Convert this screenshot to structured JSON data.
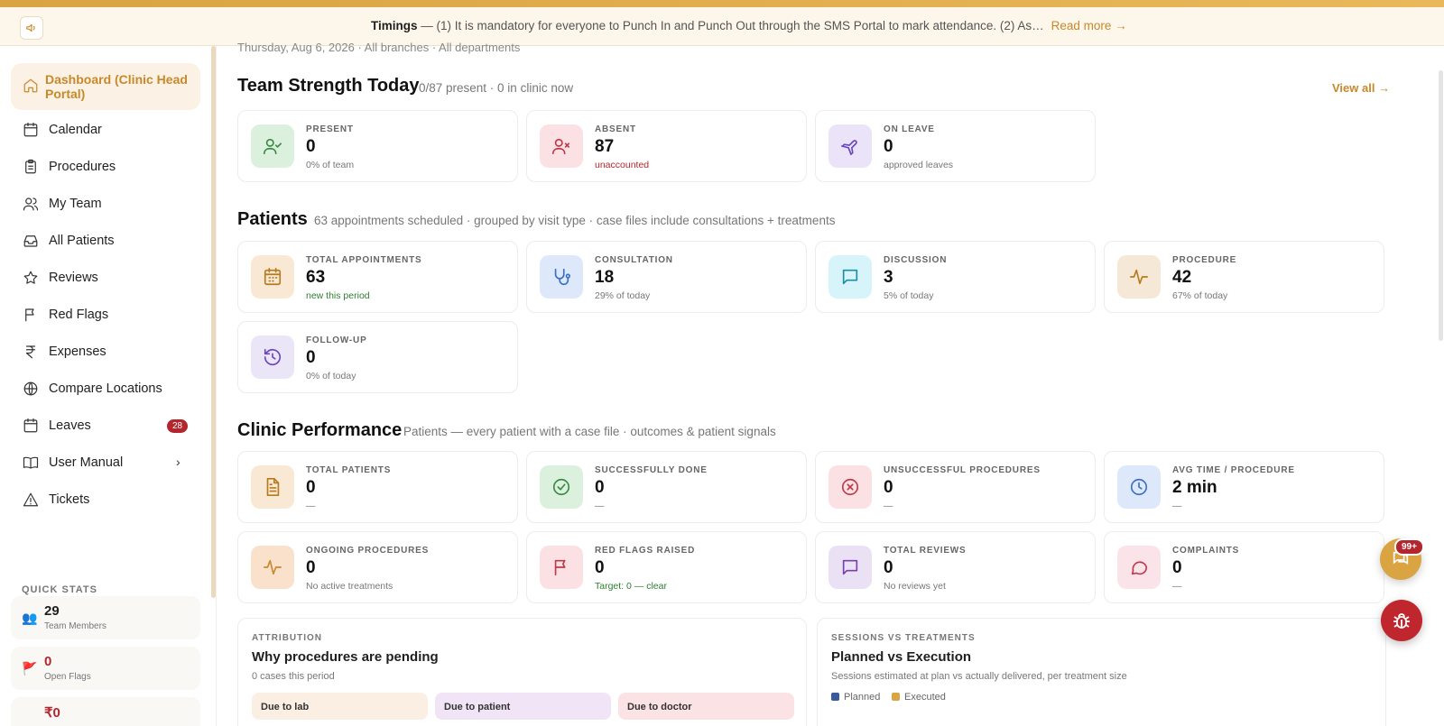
{
  "banner": {
    "title": "Timings",
    "text": " — (1) It is mandatory for everyone to Punch In and Punch Out through the SMS Portal to mark attendance. (2) As…",
    "read_more": "Read more →"
  },
  "sidebar": {
    "active": "Dashboard (Clinic Head Portal)",
    "items": [
      {
        "label": "Calendar",
        "icon": "calendar-icon"
      },
      {
        "label": "Procedures",
        "icon": "clipboard-icon"
      },
      {
        "label": "My Team",
        "icon": "users-icon"
      },
      {
        "label": "All Patients",
        "icon": "inbox-icon"
      },
      {
        "label": "Reviews",
        "icon": "star-icon"
      },
      {
        "label": "Red Flags",
        "icon": "flag-icon"
      },
      {
        "label": "Expenses",
        "icon": "rupee-icon"
      },
      {
        "label": "Compare Locations",
        "icon": "globe-icon"
      },
      {
        "label": "Leaves",
        "icon": "calendar-icon",
        "badge": "28"
      },
      {
        "label": "User Manual",
        "icon": "book-icon",
        "chevron": "›"
      },
      {
        "label": "Tickets",
        "icon": "alert-triangle-icon"
      }
    ],
    "quick_stats_title": "QUICK STATS",
    "quick_stats": [
      {
        "value": "29",
        "label": "Team Members",
        "icon": "👥",
        "color": "#1f1f1f"
      },
      {
        "value": "0",
        "label": "Open Flags",
        "icon": "🚩",
        "color": "#b3262e"
      },
      {
        "value": "₹0",
        "label": "",
        "icon": "",
        "color": "#b3262e"
      }
    ]
  },
  "main": {
    "crumb": "Thursday, Aug 6, 2026 · All branches · All departments",
    "team": {
      "title": "Team Strength Today",
      "subtitle": "0/87 present · 0 in clinic now",
      "view_all": "View all →",
      "cards": [
        {
          "key": "PRESENT",
          "value": "0",
          "sub": "0% of team"
        },
        {
          "key": "ABSENT",
          "value": "87",
          "sub": "unaccounted"
        },
        {
          "key": "ON LEAVE",
          "value": "0",
          "sub": "approved leaves"
        }
      ]
    },
    "patients": {
      "title": "Patients",
      "subtitle": "63 appointments scheduled · grouped by visit type · case files include consultations + treatments",
      "cards": [
        {
          "key": "TOTAL APPOINTMENTS",
          "value": "63",
          "sub": "new this period"
        },
        {
          "key": "CONSULTATION",
          "value": "18",
          "sub": "29% of today"
        },
        {
          "key": "DISCUSSION",
          "value": "3",
          "sub": "5% of today"
        },
        {
          "key": "PROCEDURE",
          "value": "42",
          "sub": "67% of today"
        },
        {
          "key": "FOLLOW-UP",
          "value": "0",
          "sub": "0% of today"
        }
      ]
    },
    "performance": {
      "title": "Clinic Performance",
      "subtitle": "Patients — every patient with a case file · outcomes & patient signals",
      "cards": [
        {
          "key": "TOTAL PATIENTS",
          "value": "0",
          "sub": "—"
        },
        {
          "key": "SUCCESSFULLY DONE",
          "value": "0",
          "sub": "—"
        },
        {
          "key": "UNSUCCESSFUL PROCEDURES",
          "value": "0",
          "sub": "—"
        },
        {
          "key": "AVG TIME / PROCEDURE",
          "value": "2 min",
          "sub": "—"
        },
        {
          "key": "ONGOING PROCEDURES",
          "value": "0",
          "sub": "No active treatments"
        },
        {
          "key": "RED FLAGS RAISED",
          "value": "0",
          "sub": "Target: 0 — clear"
        },
        {
          "key": "TOTAL REVIEWS",
          "value": "0",
          "sub": "No reviews yet"
        },
        {
          "key": "COMPLAINTS",
          "value": "0",
          "sub": "—"
        }
      ]
    },
    "attribution": {
      "kicker": "ATTRIBUTION",
      "title": "Why procedures are pending",
      "sub": "0 cases this period",
      "chips": [
        "Due to lab",
        "Due to patient",
        "Due to doctor"
      ]
    },
    "sessions": {
      "kicker": "SESSIONS VS TREATMENTS",
      "title": "Planned vs Execution",
      "sub": "Sessions estimated at plan vs actually delivered, per treatment size",
      "legend": [
        {
          "label": "Planned",
          "color": "#3a5a9b"
        },
        {
          "label": "Executed",
          "color": "#d9a441"
        }
      ]
    }
  },
  "fab": {
    "chat_badge": "99+"
  }
}
